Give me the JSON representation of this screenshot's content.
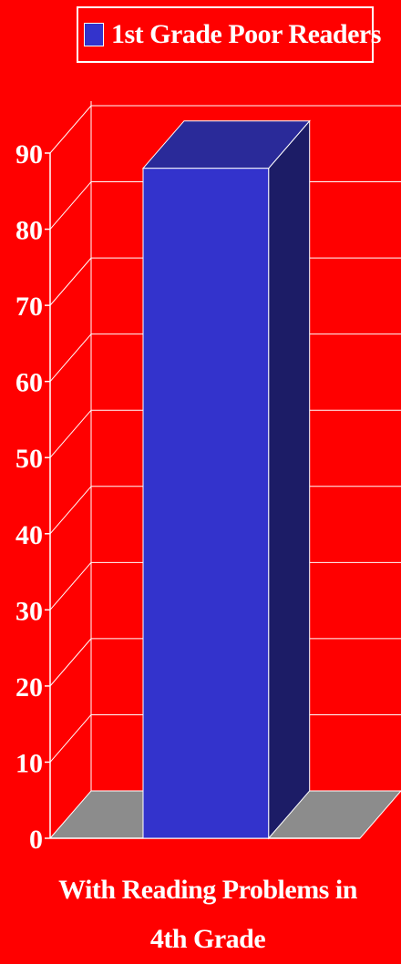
{
  "chart_data": {
    "type": "bar",
    "categories": [
      "With Reading Problems in 4th Grade"
    ],
    "series": [
      {
        "name": "1st Grade Poor Readers",
        "values": [
          88
        ]
      }
    ],
    "ylim": [
      0,
      90
    ],
    "yticks": [
      0,
      10,
      20,
      30,
      40,
      50,
      60,
      70,
      80,
      90
    ],
    "xlabel_lines": [
      "With Reading Problems in",
      "4th Grade"
    ],
    "legend_position": "top",
    "grid": true,
    "three_d": true,
    "colors": {
      "background": "#ff0000",
      "bar_front": "#3333cc",
      "bar_top": "#2a2a99",
      "bar_side": "#1c1c66",
      "floor": "#8c8c8c",
      "grid": "#ffffff",
      "text": "#ffffff"
    }
  }
}
